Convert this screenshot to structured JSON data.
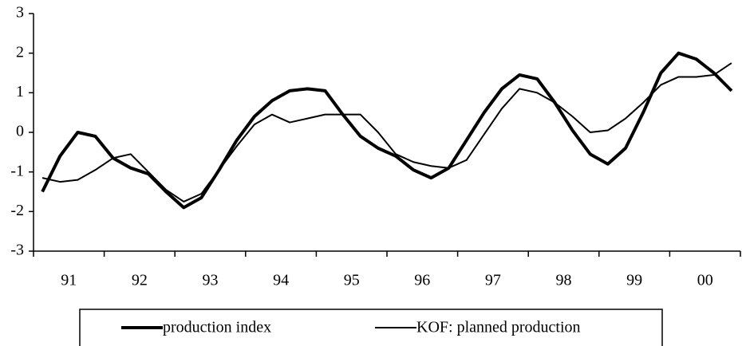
{
  "chart_data": {
    "type": "line",
    "categories": [
      "91",
      null,
      null,
      null,
      "92",
      null,
      null,
      null,
      "93",
      null,
      null,
      null,
      "94",
      null,
      null,
      null,
      "95",
      null,
      null,
      null,
      "96",
      null,
      null,
      null,
      "97",
      null,
      null,
      null,
      "98",
      null,
      null,
      null,
      "99",
      null,
      null,
      null,
      "00",
      null,
      null,
      null
    ],
    "series": [
      {
        "name": "production index",
        "color": "#000000",
        "width": 4,
        "values": [
          -1.5,
          -0.6,
          0.0,
          -0.1,
          -0.65,
          -0.9,
          -1.05,
          -1.5,
          -1.9,
          -1.65,
          -0.95,
          -0.2,
          0.4,
          0.8,
          1.05,
          1.1,
          1.05,
          0.45,
          -0.1,
          -0.4,
          -0.6,
          -0.95,
          -1.15,
          -0.9,
          -0.2,
          0.5,
          1.1,
          1.45,
          1.35,
          0.75,
          0.05,
          -0.55,
          -0.8,
          -0.4,
          0.5,
          1.5,
          2.0,
          1.85,
          1.5,
          1.05
        ]
      },
      {
        "name": "KOF: planned production",
        "color": "#000000",
        "width": 2,
        "values": [
          -1.15,
          -1.25,
          -1.2,
          -0.95,
          -0.65,
          -0.55,
          -1.0,
          -1.45,
          -1.75,
          -1.55,
          -0.95,
          -0.35,
          0.2,
          0.45,
          0.25,
          0.35,
          0.45,
          0.45,
          0.45,
          0.0,
          -0.55,
          -0.75,
          -0.85,
          -0.9,
          -0.7,
          -0.05,
          0.6,
          1.1,
          1.0,
          0.75,
          0.4,
          0.0,
          0.05,
          0.35,
          0.75,
          1.2,
          1.4,
          1.4,
          1.45,
          1.75
        ]
      }
    ],
    "ylim": [
      -3,
      3
    ],
    "yticks": [
      -3,
      -2,
      -1,
      0,
      1,
      2,
      3
    ],
    "grid": false,
    "legend": "bottom"
  }
}
